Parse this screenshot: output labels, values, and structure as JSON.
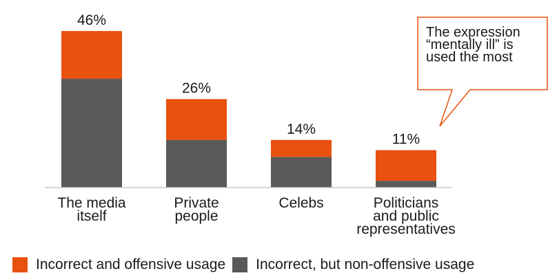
{
  "colors": {
    "offensive": "#e8510f",
    "non_offensive": "#5a5957",
    "axis": "#c9c9c9",
    "callout_border": "#e8510f"
  },
  "chart_data": {
    "type": "bar",
    "stacked": true,
    "categories": [
      "The media\nitself",
      "Private\npeople",
      "Celebs",
      "Politicians\nand public\nrepresentatives"
    ],
    "totals": [
      46,
      26,
      14,
      11
    ],
    "total_labels": [
      "46%",
      "26%",
      "14%",
      "11%"
    ],
    "series": [
      {
        "name": "Incorrect, but non-offensive usage",
        "values": [
          32,
          14,
          9,
          2
        ],
        "color": "#5a5957"
      },
      {
        "name": "Incorrect and offensive usage",
        "values": [
          14,
          12,
          5,
          9
        ],
        "color": "#e8510f"
      }
    ],
    "ylim": [
      0,
      50
    ],
    "grid": false,
    "legend_position": "bottom"
  },
  "callout": {
    "text": "The expression\n“mentally ill” is\nused the most"
  },
  "legend": [
    {
      "label": "Incorrect and offensive usage",
      "color": "#e8510f"
    },
    {
      "label": "Incorrect, but non-offensive usage",
      "color": "#5a5957"
    }
  ]
}
